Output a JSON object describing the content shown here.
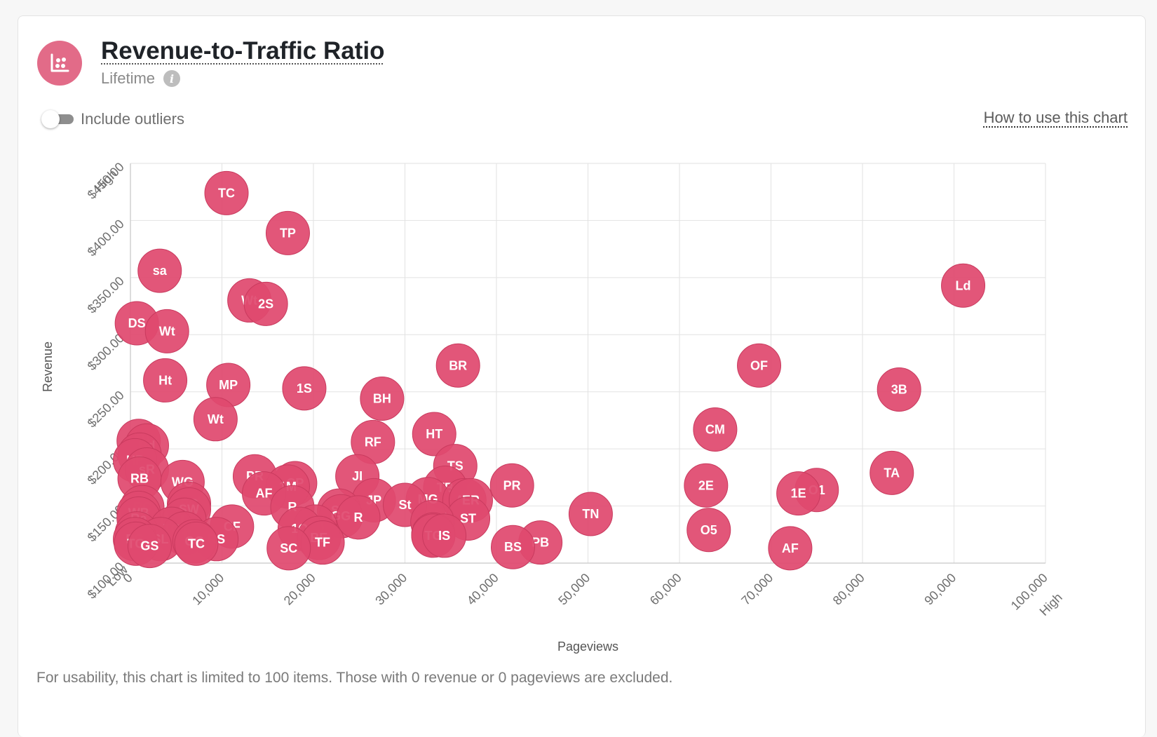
{
  "header": {
    "title": "Revenue-to-Traffic Ratio",
    "subtitle": "Lifetime",
    "info_icon": "info-icon",
    "logo_icon": "scatter-chart-icon",
    "accent_color": "#e26b88"
  },
  "controls": {
    "toggle_label": "Include outliers",
    "toggle_on": false,
    "help_link": "How to use this chart"
  },
  "footnote": "For usability, this chart is limited to 100 items. Those with 0 revenue or 0 pageviews are excluded.",
  "chart_data": {
    "type": "scatter",
    "xlabel": "Pageviews",
    "ylabel": "Revenue",
    "xlim": [
      0,
      100000
    ],
    "ylim": [
      100,
      450
    ],
    "x_ticks": [
      "0",
      "10,000",
      "20,000",
      "30,000",
      "40,000",
      "50,000",
      "60,000",
      "70,000",
      "80,000",
      "90,000",
      "100,000"
    ],
    "y_ticks": [
      "$100.00",
      "$150.00",
      "$200.00",
      "$250.00",
      "$300.00",
      "$350.00",
      "$400.00",
      "$450.00"
    ],
    "x_low_label": "Low",
    "x_high_label": "High",
    "y_low_label": "Low",
    "y_high_label": "High",
    "grid": true,
    "marker_color": "#e0496f",
    "points": [
      {
        "label": "TC",
        "x": 10500,
        "y": 424
      },
      {
        "label": "TP",
        "x": 17200,
        "y": 389
      },
      {
        "label": "sa",
        "x": 3200,
        "y": 356
      },
      {
        "label": "Wt",
        "x": 13000,
        "y": 330
      },
      {
        "label": "2S",
        "x": 14800,
        "y": 327
      },
      {
        "label": "DS",
        "x": 700,
        "y": 310
      },
      {
        "label": "Wt",
        "x": 4000,
        "y": 303
      },
      {
        "label": "Ld",
        "x": 91000,
        "y": 343
      },
      {
        "label": "Ht",
        "x": 3800,
        "y": 260
      },
      {
        "label": "MP",
        "x": 10700,
        "y": 256
      },
      {
        "label": "1S",
        "x": 19000,
        "y": 253
      },
      {
        "label": "BR",
        "x": 35800,
        "y": 273
      },
      {
        "label": "BH",
        "x": 27500,
        "y": 244
      },
      {
        "label": "OF",
        "x": 68700,
        "y": 273
      },
      {
        "label": "3B",
        "x": 84000,
        "y": 252
      },
      {
        "label": "Wt",
        "x": 9300,
        "y": 226
      },
      {
        "label": "RF",
        "x": 26500,
        "y": 206
      },
      {
        "label": "HT",
        "x": 33200,
        "y": 213
      },
      {
        "label": "CM",
        "x": 63900,
        "y": 217
      },
      {
        "label": "HW",
        "x": 900,
        "y": 207
      },
      {
        "label": "Bd",
        "x": 1800,
        "y": 203
      },
      {
        "label": "C",
        "x": 1000,
        "y": 195
      },
      {
        "label": "TS",
        "x": 35500,
        "y": 185
      },
      {
        "label": "TA",
        "x": 83200,
        "y": 179
      },
      {
        "label": "HP",
        "x": 500,
        "y": 190
      },
      {
        "label": "sR",
        "x": 1800,
        "y": 182
      },
      {
        "label": "PR",
        "x": 13600,
        "y": 176
      },
      {
        "label": "JI",
        "x": 24800,
        "y": 176
      },
      {
        "label": "CP",
        "x": 18000,
        "y": 170
      },
      {
        "label": "1M",
        "x": 17200,
        "y": 167
      },
      {
        "label": "PR",
        "x": 41700,
        "y": 168
      },
      {
        "label": "2E",
        "x": 62900,
        "y": 168
      },
      {
        "label": "RB",
        "x": 1000,
        "y": 174
      },
      {
        "label": "WG",
        "x": 5700,
        "y": 171
      },
      {
        "label": "TB",
        "x": 34400,
        "y": 166
      },
      {
        "label": "O1",
        "x": 75000,
        "y": 164
      },
      {
        "label": "1E",
        "x": 73000,
        "y": 161
      },
      {
        "label": "AF",
        "x": 14600,
        "y": 161
      },
      {
        "label": "JP",
        "x": 26600,
        "y": 155
      },
      {
        "label": "MG",
        "x": 32500,
        "y": 156
      },
      {
        "label": "AC",
        "x": 36500,
        "y": 155
      },
      {
        "label": "ER",
        "x": 37200,
        "y": 155
      },
      {
        "label": "St",
        "x": 30000,
        "y": 151
      },
      {
        "label": "TN",
        "x": 50300,
        "y": 143
      },
      {
        "label": "BC",
        "x": 6400,
        "y": 152
      },
      {
        "label": "R",
        "x": 17700,
        "y": 149
      },
      {
        "label": "SW",
        "x": 6400,
        "y": 147
      },
      {
        "label": "RC",
        "x": 1300,
        "y": 149
      },
      {
        "label": "SL",
        "x": 22800,
        "y": 146
      },
      {
        "label": "GG",
        "x": 23000,
        "y": 141
      },
      {
        "label": "R",
        "x": 24900,
        "y": 140
      },
      {
        "label": "WB",
        "x": 900,
        "y": 144
      },
      {
        "label": "ST",
        "x": 36900,
        "y": 139
      },
      {
        "label": "Re",
        "x": 900,
        "y": 139
      },
      {
        "label": "L",
        "x": 5900,
        "y": 138
      },
      {
        "label": "CF",
        "x": 11100,
        "y": 132
      },
      {
        "label": "HO",
        "x": 33000,
        "y": 136
      },
      {
        "label": "TC",
        "x": 4500,
        "y": 130
      },
      {
        "label": "AB",
        "x": 20200,
        "y": 132
      },
      {
        "label": "1O",
        "x": 18500,
        "y": 130
      },
      {
        "label": "O5",
        "x": 63200,
        "y": 129
      },
      {
        "label": "Ht",
        "x": 5900,
        "y": 126
      },
      {
        "label": "SK",
        "x": 700,
        "y": 126
      },
      {
        "label": "EA",
        "x": 33100,
        "y": 125
      },
      {
        "label": "BE",
        "x": 20600,
        "y": 122
      },
      {
        "label": "TG",
        "x": 33100,
        "y": 124
      },
      {
        "label": "IS",
        "x": 34300,
        "y": 124
      },
      {
        "label": "RS",
        "x": 9400,
        "y": 121
      },
      {
        "label": "SL",
        "x": 3300,
        "y": 121
      },
      {
        "label": "PB",
        "x": 44800,
        "y": 118
      },
      {
        "label": "PG",
        "x": 500,
        "y": 121
      },
      {
        "label": "GG",
        "x": 7000,
        "y": 119
      },
      {
        "label": "TC",
        "x": 7200,
        "y": 117
      },
      {
        "label": "TF",
        "x": 21000,
        "y": 118
      },
      {
        "label": "TG",
        "x": 600,
        "y": 117
      },
      {
        "label": "GS",
        "x": 2100,
        "y": 115
      },
      {
        "label": "SC",
        "x": 17300,
        "y": 113
      },
      {
        "label": "BS",
        "x": 41800,
        "y": 114
      },
      {
        "label": "AF",
        "x": 72100,
        "y": 113
      }
    ]
  }
}
